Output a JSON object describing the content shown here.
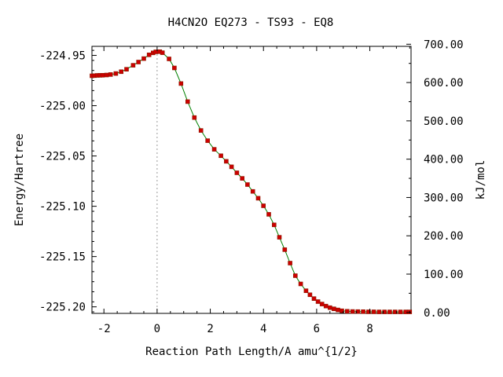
{
  "chart_data": {
    "type": "line",
    "title": "H4CN2O   EQ273 - TS93 - EQ8",
    "xlabel": "Reaction Path Length/A amu^{1/2}",
    "ylabel": "Energy/Hartree",
    "y2label": "kJ/mol",
    "xlim": [
      -2.45,
      9.55
    ],
    "ylim": [
      -225.2065,
      -224.941
    ],
    "y2lim": [
      -2.5,
      694.5
    ],
    "x_ticks": [
      -2,
      0,
      2,
      4,
      6,
      8
    ],
    "x_tick_labels": [
      "-2",
      "0",
      "2",
      "4",
      "6",
      "8"
    ],
    "y_ticks": [
      -224.95,
      -225.0,
      -225.05,
      -225.1,
      -225.15,
      -225.2
    ],
    "y_tick_labels": [
      "-224.95",
      "-225.00",
      "-225.05",
      "-225.10",
      "-225.15",
      "-225.20"
    ],
    "y2_ticks": [
      700,
      600,
      500,
      400,
      300,
      200,
      100,
      0
    ],
    "y2_tick_labels": [
      "700.00",
      "600.00",
      "500.00",
      "400.00",
      "300.00",
      "200.00",
      "100.00",
      "0.00"
    ],
    "ts_marker_x": 0,
    "grid": false,
    "legend": "none",
    "colors": {
      "line": "#008000",
      "marker": "#cc0000",
      "marker_edge": "#8b1a00",
      "ts_line": "#999999"
    },
    "series": [
      {
        "x": [
          -2.45,
          -2.35,
          -2.25,
          -2.15,
          -2.05,
          -1.9,
          -1.75,
          -1.55,
          -1.35,
          -1.15,
          -0.9,
          -0.7,
          -0.5,
          -0.3,
          -0.15,
          -0.05,
          0.1,
          0.2,
          0.45,
          0.65,
          0.9,
          1.15,
          1.4,
          1.65,
          1.9,
          2.15,
          2.4,
          2.6,
          2.8,
          3.0,
          3.2,
          3.4,
          3.6,
          3.8,
          4.0,
          4.2,
          4.4,
          4.6,
          4.8,
          5.0,
          5.2,
          5.4,
          5.6,
          5.75,
          5.9,
          6.05,
          6.2,
          6.35,
          6.5,
          6.65,
          6.8,
          6.95,
          7.15,
          7.35,
          7.55,
          7.75,
          7.95,
          8.15,
          8.35,
          8.55,
          8.75,
          8.95,
          9.15,
          9.35,
          9.5
        ],
        "y": [
          -224.9703,
          -224.9701,
          -224.9699,
          -224.9698,
          -224.9697,
          -224.9695,
          -224.969,
          -224.968,
          -224.9662,
          -224.9638,
          -224.9598,
          -224.9566,
          -224.9532,
          -224.9494,
          -224.9475,
          -224.9465,
          -224.9463,
          -224.9473,
          -224.9535,
          -224.9625,
          -224.978,
          -224.996,
          -225.0118,
          -225.0246,
          -225.0348,
          -225.0434,
          -225.0498,
          -225.0553,
          -225.0608,
          -225.0667,
          -225.0723,
          -225.0784,
          -225.0852,
          -225.092,
          -225.0995,
          -225.108,
          -225.1185,
          -225.1308,
          -225.1432,
          -225.1565,
          -225.169,
          -225.1772,
          -225.184,
          -225.188,
          -225.1918,
          -225.1948,
          -225.1972,
          -225.1992,
          -225.2008,
          -225.202,
          -225.2031,
          -225.2039,
          -225.2044,
          -225.2046,
          -225.2047,
          -225.2048,
          -225.2049,
          -225.2049,
          -225.205,
          -225.205,
          -225.205,
          -225.205,
          -225.205,
          -225.205,
          -225.205
        ]
      }
    ]
  }
}
